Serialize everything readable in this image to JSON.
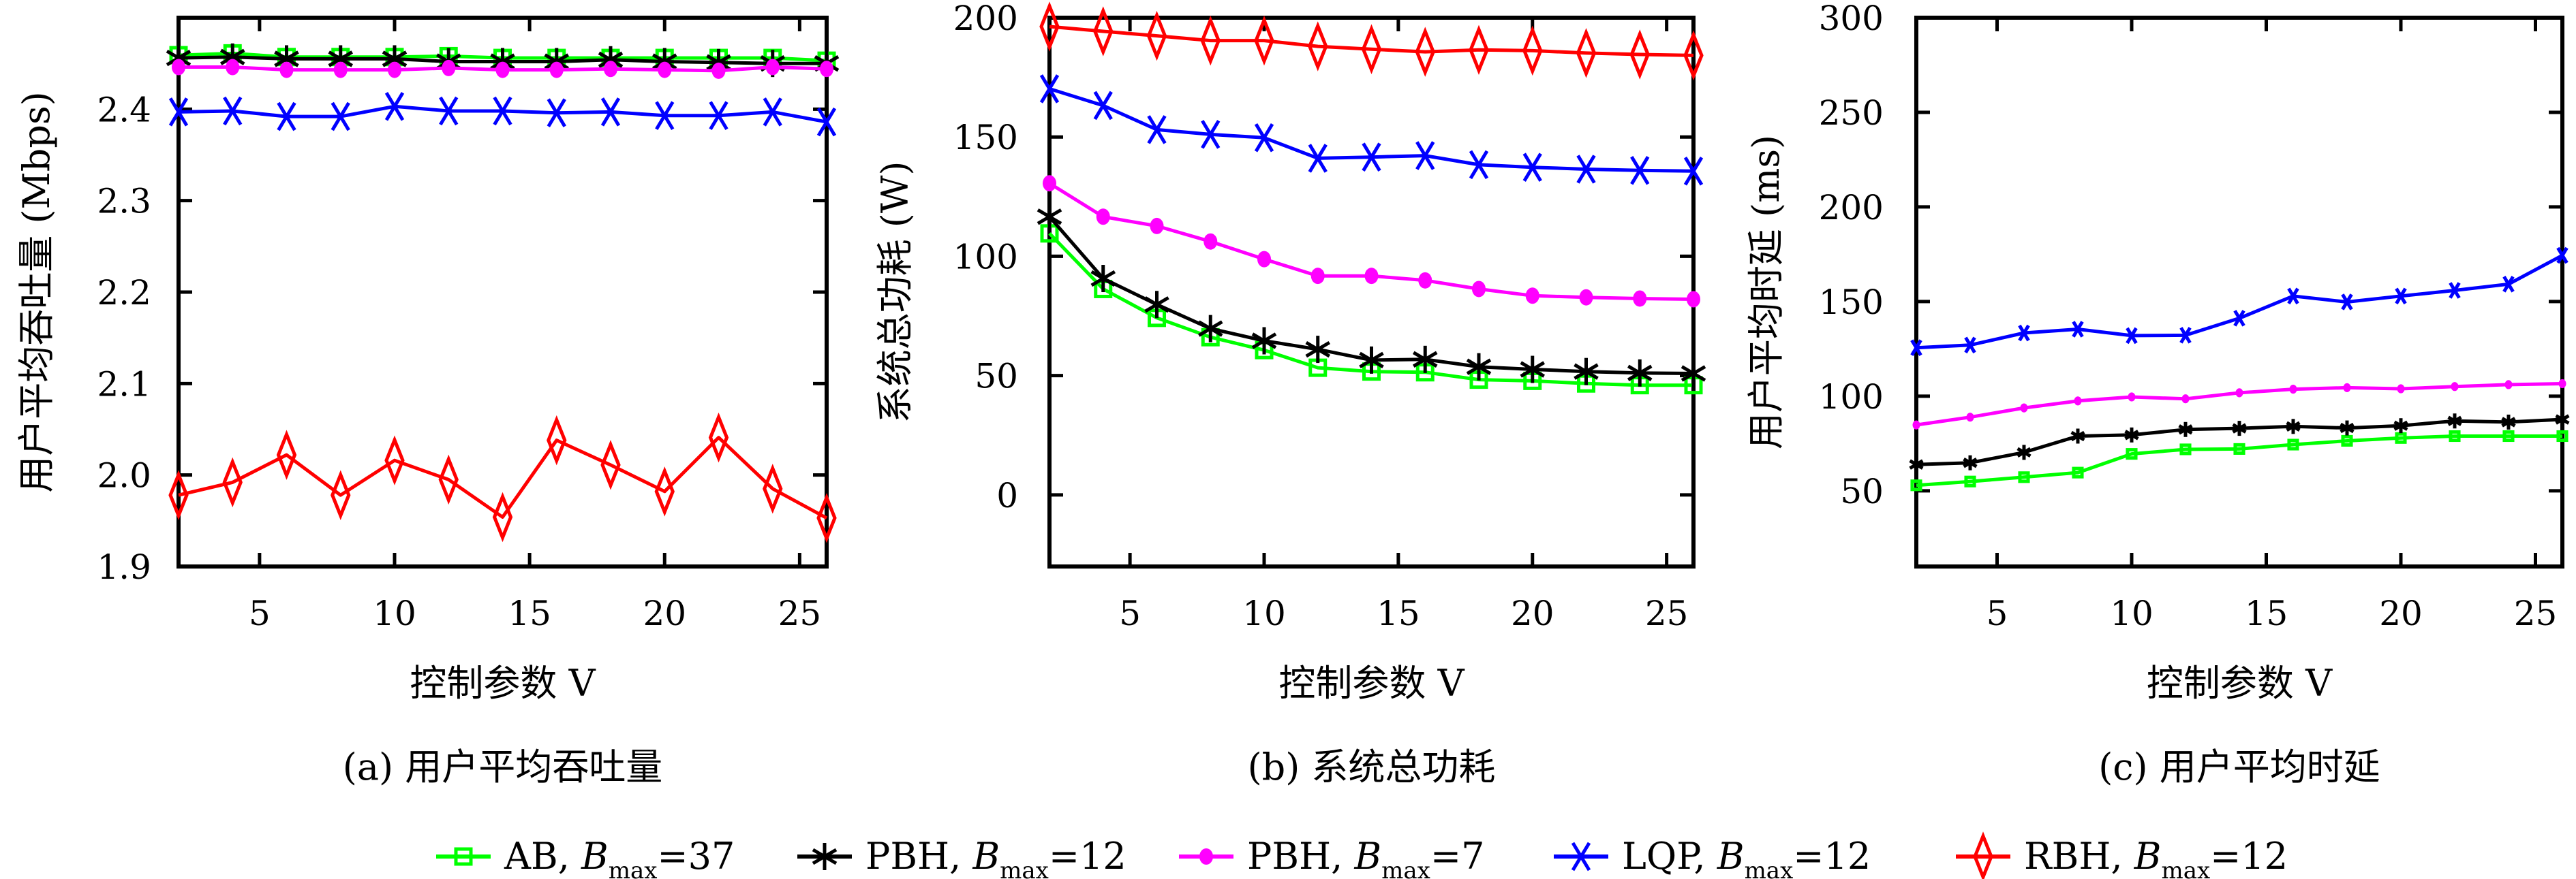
{
  "chart_data": [
    {
      "id": "a",
      "type": "line",
      "title": "",
      "caption": "(a) 用户平均吞吐量",
      "xlabel": "控制参数 V",
      "ylabel": "用户平均吞吐量 (Mbps)",
      "xlim": [
        2,
        26
      ],
      "ylim": [
        1.9,
        2.5
      ],
      "xticks": [
        5,
        10,
        15,
        20,
        25
      ],
      "xtick_labels": [
        "5",
        "10",
        "15",
        "20",
        "25"
      ],
      "yticks": [
        1.9,
        2.0,
        2.1,
        2.2,
        2.3,
        2.4
      ],
      "ytick_labels": [
        "1.9",
        "2.0",
        "2.1",
        "2.2",
        "2.3",
        "2.4"
      ],
      "grid": false,
      "x": [
        2,
        4,
        6,
        8,
        10,
        12,
        14,
        16,
        18,
        20,
        22,
        24,
        26
      ],
      "series": [
        {
          "key": "ab37",
          "values": [
            2.459,
            2.461,
            2.457,
            2.457,
            2.457,
            2.458,
            2.456,
            2.456,
            2.456,
            2.456,
            2.456,
            2.456,
            2.453
          ]
        },
        {
          "key": "pbh12",
          "values": [
            2.456,
            2.457,
            2.455,
            2.455,
            2.455,
            2.452,
            2.452,
            2.452,
            2.454,
            2.452,
            2.451,
            2.45,
            2.45
          ]
        },
        {
          "key": "pbh7",
          "values": [
            2.446,
            2.446,
            2.443,
            2.443,
            2.443,
            2.445,
            2.443,
            2.443,
            2.444,
            2.443,
            2.442,
            2.446,
            2.444
          ]
        },
        {
          "key": "lqp12",
          "values": [
            2.397,
            2.398,
            2.392,
            2.392,
            2.403,
            2.398,
            2.398,
            2.396,
            2.397,
            2.393,
            2.393,
            2.397,
            2.386
          ]
        },
        {
          "key": "rbh12",
          "values": [
            1.978,
            1.992,
            2.022,
            1.978,
            2.016,
            1.995,
            1.954,
            2.038,
            2.011,
            1.982,
            2.041,
            1.985,
            1.953
          ]
        }
      ]
    },
    {
      "id": "b",
      "type": "line",
      "title": "",
      "caption": "(b) 系统总功耗",
      "xlabel": "控制参数 V",
      "ylabel": "系统总功耗 (W)",
      "xlim": [
        2,
        26
      ],
      "ylim": [
        -30,
        200
      ],
      "xticks": [
        5,
        10,
        15,
        20,
        25
      ],
      "xtick_labels": [
        "5",
        "10",
        "15",
        "20",
        "25"
      ],
      "yticks": [
        0,
        50,
        100,
        150,
        200
      ],
      "ytick_labels": [
        "0",
        "50",
        "100",
        "150",
        "200"
      ],
      "grid": false,
      "x": [
        2,
        4,
        6,
        8,
        10,
        12,
        14,
        16,
        18,
        20,
        22,
        24,
        26
      ],
      "series": [
        {
          "key": "ab37",
          "values": [
            109.6,
            86.3,
            74.2,
            66.1,
            60.7,
            53.3,
            51.7,
            51.4,
            48.3,
            47.8,
            46.7,
            46.0,
            46.0
          ]
        },
        {
          "key": "pbh12",
          "values": [
            116.6,
            90.7,
            79.8,
            69.7,
            64.6,
            61.0,
            56.5,
            56.8,
            53.7,
            52.6,
            51.7,
            51.1,
            50.9
          ]
        },
        {
          "key": "pbh7",
          "values": [
            130.6,
            116.6,
            112.7,
            106.2,
            98.8,
            91.8,
            91.8,
            89.9,
            86.3,
            83.5,
            82.8,
            82.3,
            82.0
          ]
        },
        {
          "key": "lqp12",
          "values": [
            170.2,
            163.2,
            153.1,
            151.1,
            149.7,
            141.1,
            141.6,
            142.2,
            138.4,
            137.3,
            136.5,
            136.0,
            135.7
          ]
        },
        {
          "key": "rbh12",
          "values": [
            196.3,
            194.3,
            192.4,
            190.4,
            190.4,
            188.0,
            186.8,
            185.7,
            186.5,
            186.2,
            185.2,
            184.6,
            184.2
          ]
        }
      ]
    },
    {
      "id": "c",
      "type": "line",
      "title": "",
      "caption": "(c) 用户平均时延",
      "xlabel": "控制参数 V",
      "ylabel": "用户平均时延 (ms)",
      "xlim": [
        2,
        26
      ],
      "ylim": [
        10,
        300
      ],
      "xticks": [
        5,
        10,
        15,
        20,
        25
      ],
      "xtick_labels": [
        "5",
        "10",
        "15",
        "20",
        "25"
      ],
      "yticks": [
        50,
        100,
        150,
        200,
        250,
        300
      ],
      "ytick_labels": [
        "50",
        "100",
        "150",
        "200",
        "250",
        "300"
      ],
      "grid": false,
      "x": [
        2,
        4,
        6,
        8,
        10,
        12,
        14,
        16,
        18,
        20,
        22,
        24,
        26
      ],
      "series": [
        {
          "key": "ab37",
          "values": [
            52.9,
            54.9,
            57.2,
            59.6,
            69.5,
            71.9,
            72.1,
            74.4,
            76.4,
            77.9,
            78.9,
            78.9,
            78.9
          ]
        },
        {
          "key": "pbh12",
          "values": [
            63.9,
            64.8,
            70.3,
            78.9,
            79.5,
            82.4,
            83.0,
            84.0,
            83.2,
            84.4,
            86.9,
            86.3,
            87.7
          ]
        },
        {
          "key": "pbh7",
          "values": [
            84.8,
            88.9,
            93.8,
            97.5,
            99.6,
            98.6,
            101.8,
            103.7,
            104.5,
            103.9,
            105.1,
            106.1,
            106.6
          ]
        },
        {
          "key": "lqp12",
          "values": [
            125.6,
            127.0,
            133.4,
            135.4,
            132.0,
            132.2,
            141.2,
            152.9,
            149.8,
            152.9,
            155.9,
            159.2,
            174.4
          ]
        }
      ]
    }
  ],
  "legend": {
    "placement": "bottom-center",
    "entries": [
      {
        "key": "ab37",
        "name": "AB",
        "param": "B",
        "sub": "max",
        "value": "=37",
        "color": "#00ff00",
        "marker": "square-open"
      },
      {
        "key": "pbh12",
        "name": "PBH",
        "param": "B",
        "sub": "max",
        "value": "=12",
        "color": "#000000",
        "marker": "asterisk"
      },
      {
        "key": "pbh7",
        "name": "PBH",
        "param": "B",
        "sub": "max",
        "value": "=7",
        "color": "#ff00ff",
        "marker": "circle-filled"
      },
      {
        "key": "lqp12",
        "name": "LQP",
        "param": "B",
        "sub": "max",
        "value": "=12",
        "color": "#0000ff",
        "marker": "x-cross"
      },
      {
        "key": "rbh12",
        "name": "RBH",
        "param": "B",
        "sub": "max",
        "value": "=12",
        "color": "#ff0000",
        "marker": "diamond-open"
      }
    ]
  }
}
